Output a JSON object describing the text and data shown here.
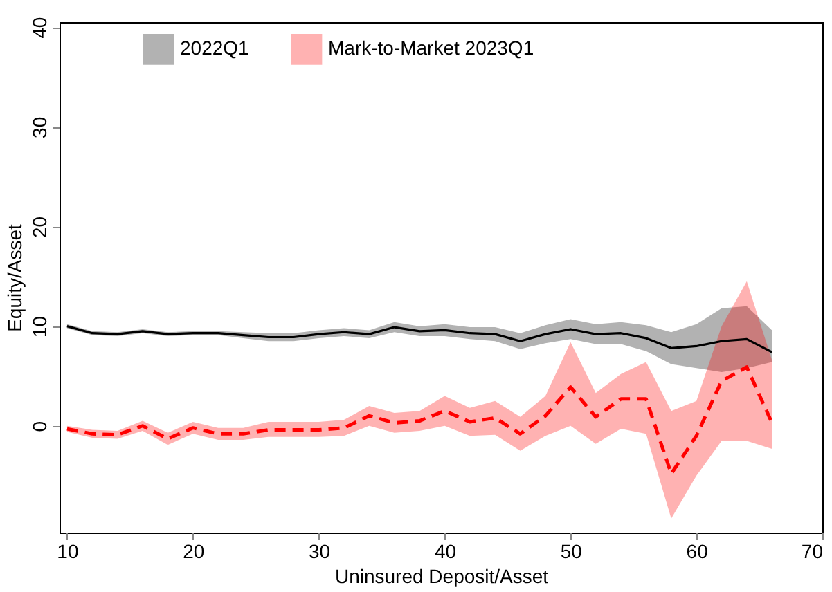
{
  "chart_data": {
    "type": "line",
    "xlabel": "Uninsured Deposit/Asset",
    "ylabel": "Equity/Asset",
    "x": [
      10,
      12,
      14,
      16,
      18,
      20,
      22,
      24,
      26,
      28,
      30,
      32,
      34,
      36,
      38,
      40,
      42,
      44,
      46,
      48,
      50,
      52,
      54,
      56,
      58,
      60,
      62,
      64,
      66
    ],
    "series": [
      {
        "name": "2022Q1",
        "color": "#000000",
        "line_style": "solid",
        "values": [
          10.0,
          9.3,
          9.2,
          9.5,
          9.2,
          9.3,
          9.3,
          9.1,
          8.9,
          8.9,
          9.2,
          9.4,
          9.2,
          9.9,
          9.5,
          9.6,
          9.3,
          9.2,
          8.5,
          9.2,
          9.7,
          9.2,
          9.3,
          8.8,
          7.8,
          8.0,
          8.5,
          8.7,
          7.4
        ],
        "lower": [
          9.8,
          9.1,
          9.0,
          9.3,
          9.0,
          9.1,
          9.1,
          8.8,
          8.5,
          8.5,
          8.8,
          9.0,
          8.8,
          9.4,
          9.0,
          9.0,
          8.7,
          8.5,
          7.7,
          8.3,
          8.7,
          8.2,
          8.2,
          7.5,
          6.2,
          5.8,
          5.4,
          5.8,
          6.4
        ],
        "upper": [
          10.2,
          9.5,
          9.4,
          9.7,
          9.4,
          9.5,
          9.5,
          9.4,
          9.3,
          9.3,
          9.6,
          9.8,
          9.6,
          10.4,
          10.0,
          10.2,
          9.9,
          9.9,
          9.3,
          10.1,
          10.7,
          10.2,
          10.4,
          10.1,
          9.4,
          10.2,
          11.8,
          12.0,
          9.6
        ]
      },
      {
        "name": "Mark-to-Market 2023Q1",
        "color": "#ff0000",
        "line_style": "dashed",
        "values": [
          -0.3,
          -0.8,
          -0.9,
          0.0,
          -1.3,
          -0.2,
          -0.8,
          -0.8,
          -0.4,
          -0.4,
          -0.4,
          -0.2,
          1.0,
          0.3,
          0.5,
          1.5,
          0.4,
          0.8,
          -0.8,
          1.0,
          3.9,
          0.9,
          2.7,
          2.7,
          -4.8,
          -1.0,
          4.5,
          5.9,
          0.3
        ],
        "lower": [
          -0.6,
          -1.2,
          -1.3,
          -0.5,
          -1.9,
          -0.8,
          -1.4,
          -1.4,
          -1.1,
          -1.1,
          -1.1,
          -1.0,
          0.0,
          -0.7,
          -0.5,
          0.0,
          -1.0,
          -0.9,
          -2.5,
          -1.0,
          0.0,
          -1.8,
          -0.3,
          -0.8,
          -9.3,
          -5.0,
          -1.5,
          -1.5,
          -2.3
        ],
        "upper": [
          0.0,
          -0.4,
          -0.5,
          0.5,
          -0.7,
          0.4,
          -0.2,
          -0.2,
          0.4,
          0.4,
          0.4,
          0.6,
          2.0,
          1.3,
          1.5,
          3.0,
          1.8,
          2.5,
          0.9,
          3.0,
          8.4,
          3.3,
          5.2,
          6.4,
          1.5,
          2.5,
          10.0,
          14.5,
          6.6
        ]
      }
    ],
    "xlim": [
      9.4,
      70
    ],
    "ylim": [
      -10.7,
      40.5
    ],
    "xticks": [
      10,
      20,
      30,
      40,
      50,
      60,
      70
    ],
    "yticks": [
      0,
      10,
      20,
      30,
      40
    ],
    "grid": false,
    "legend": "top"
  }
}
